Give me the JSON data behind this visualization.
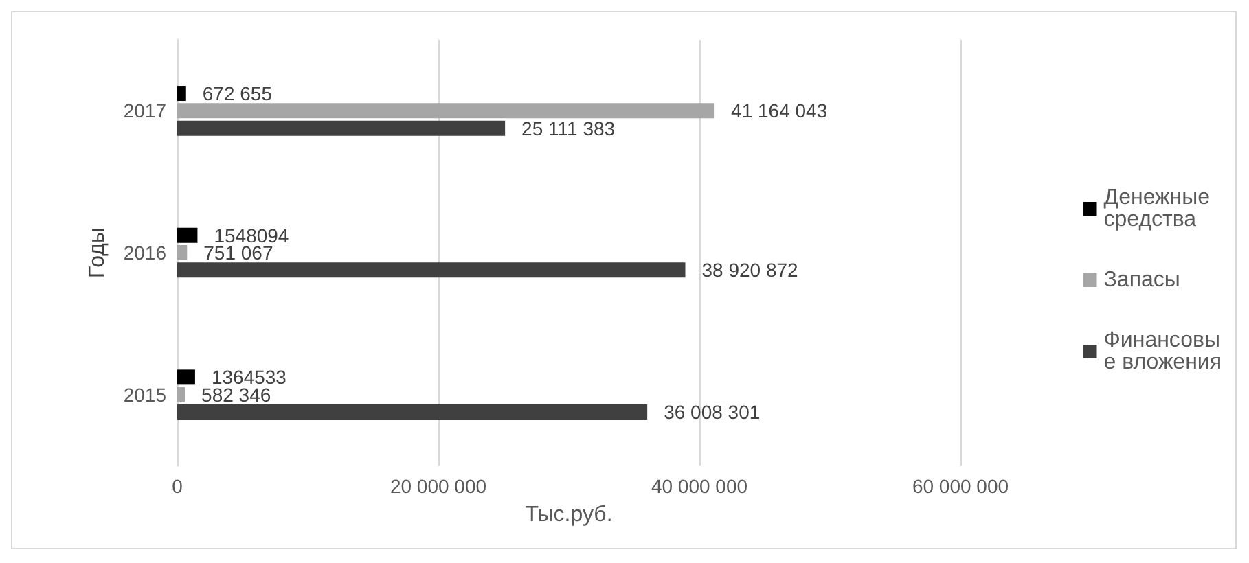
{
  "chart_data": {
    "type": "bar",
    "orientation": "horizontal",
    "ylabel": "Годы",
    "xlabel": "Тыс.руб.",
    "categories": [
      "2017",
      "2016",
      "2015"
    ],
    "series": [
      {
        "name": "Денежные средства",
        "color": "#000000",
        "values": [
          672655,
          1548094,
          1364533
        ],
        "value_labels": [
          "672 655",
          "1548094",
          "1364533"
        ]
      },
      {
        "name": "Запасы",
        "color": "#a6a6a6",
        "values": [
          41164043,
          751067,
          582346
        ],
        "value_labels": [
          "41 164 043",
          "751 067",
          "582 346"
        ]
      },
      {
        "name": "Финансовые вложения",
        "color": "#404040",
        "values": [
          25111383,
          38920872,
          36008301
        ],
        "value_labels": [
          "25 111 383",
          "38 920 872",
          "36 008 301"
        ]
      }
    ],
    "xlim": [
      0,
      60000000
    ],
    "xticks": [
      {
        "value": 0,
        "label": "0"
      },
      {
        "value": 20000000,
        "label": "20 000 000"
      },
      {
        "value": 40000000,
        "label": "40 000 000"
      },
      {
        "value": 60000000,
        "label": "60 000 000"
      }
    ],
    "grid": "x",
    "legend": "right"
  }
}
